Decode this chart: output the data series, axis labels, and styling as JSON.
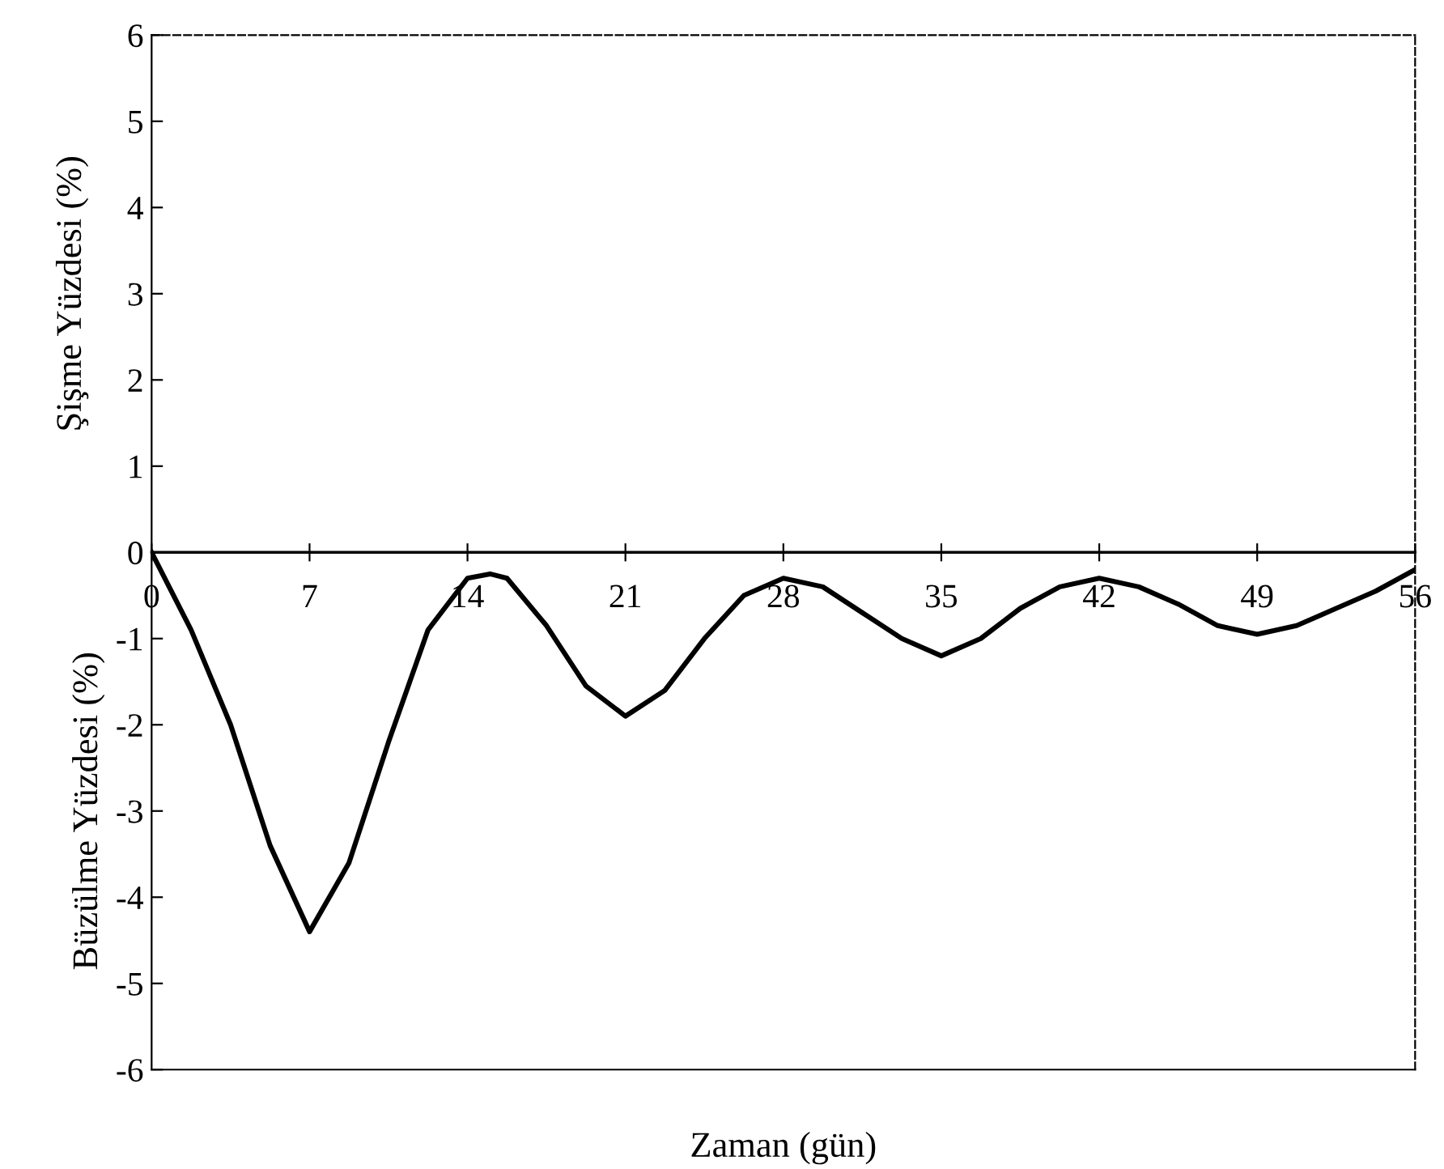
{
  "chart_data": {
    "type": "line",
    "xlabel": "Zaman (gün)",
    "ylabel": "Şişme Yüzdesi (%)",
    "annotations": [
      "Büzülme Yüzdesi (%)"
    ],
    "x": [
      0,
      1.75,
      3.5,
      5.25,
      7,
      8.75,
      10.5,
      12.25,
      14,
      15,
      15.75,
      17.5,
      19.25,
      21,
      22.75,
      24.5,
      26.25,
      28,
      29.75,
      31.5,
      33.25,
      35,
      36.75,
      38.5,
      40.25,
      42,
      43.75,
      45.5,
      47.25,
      49,
      50.75,
      52.5,
      54.25,
      56
    ],
    "series": [
      {
        "color": "#000000",
        "values": [
          0,
          -0.9,
          -2.0,
          -3.4,
          -4.4,
          -3.6,
          -2.2,
          -0.9,
          -0.3,
          -0.25,
          -0.3,
          -0.85,
          -1.55,
          -1.9,
          -1.6,
          -1.0,
          -0.5,
          -0.3,
          -0.4,
          -0.7,
          -1.0,
          -1.2,
          -1.0,
          -0.65,
          -0.4,
          -0.3,
          -0.4,
          -0.6,
          -0.85,
          -0.95,
          -0.85,
          -0.65,
          -0.45,
          -0.2
        ]
      }
    ],
    "xlim": [
      0,
      56
    ],
    "xticks": [
      0,
      7,
      14,
      21,
      28,
      35,
      42,
      49,
      56
    ],
    "ylim": [
      -6,
      6
    ],
    "yticks": [
      -6,
      -5,
      -4,
      -3,
      -2,
      -1,
      0,
      1,
      2,
      3,
      4,
      5,
      6
    ],
    "grid": false,
    "legend": false,
    "marker": "none",
    "line_style": "solid"
  }
}
